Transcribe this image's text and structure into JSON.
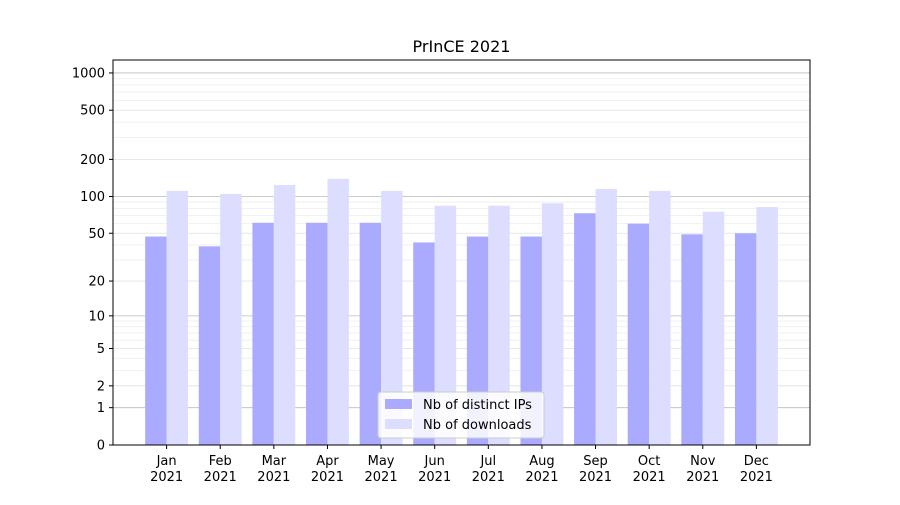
{
  "chart_data": {
    "type": "bar",
    "title": "PrInCE 2021",
    "xlabel": "",
    "ylabel": "",
    "categories": [
      "Jan\n2021",
      "Feb\n2021",
      "Mar\n2021",
      "Apr\n2021",
      "May\n2021",
      "Jun\n2021",
      "Jul\n2021",
      "Aug\n2021",
      "Sep\n2021",
      "Oct\n2021",
      "Nov\n2021",
      "Dec\n2021"
    ],
    "y_scale": "log(1+y)",
    "ylim": [
      0,
      1300
    ],
    "yticks": [
      0,
      1,
      2,
      5,
      10,
      20,
      50,
      100,
      200,
      500,
      1000
    ],
    "grid": true,
    "legend": "bottom-center",
    "series": [
      {
        "name": "Nb of distinct IPs",
        "color": "#aaaaff",
        "values": [
          47,
          39,
          61,
          61,
          61,
          42,
          47,
          47,
          73,
          60,
          49,
          50
        ]
      },
      {
        "name": "Nb of downloads",
        "color": "#ddddff",
        "values": [
          111,
          105,
          124,
          139,
          111,
          84,
          84,
          88,
          115,
          111,
          75,
          82
        ]
      }
    ]
  }
}
